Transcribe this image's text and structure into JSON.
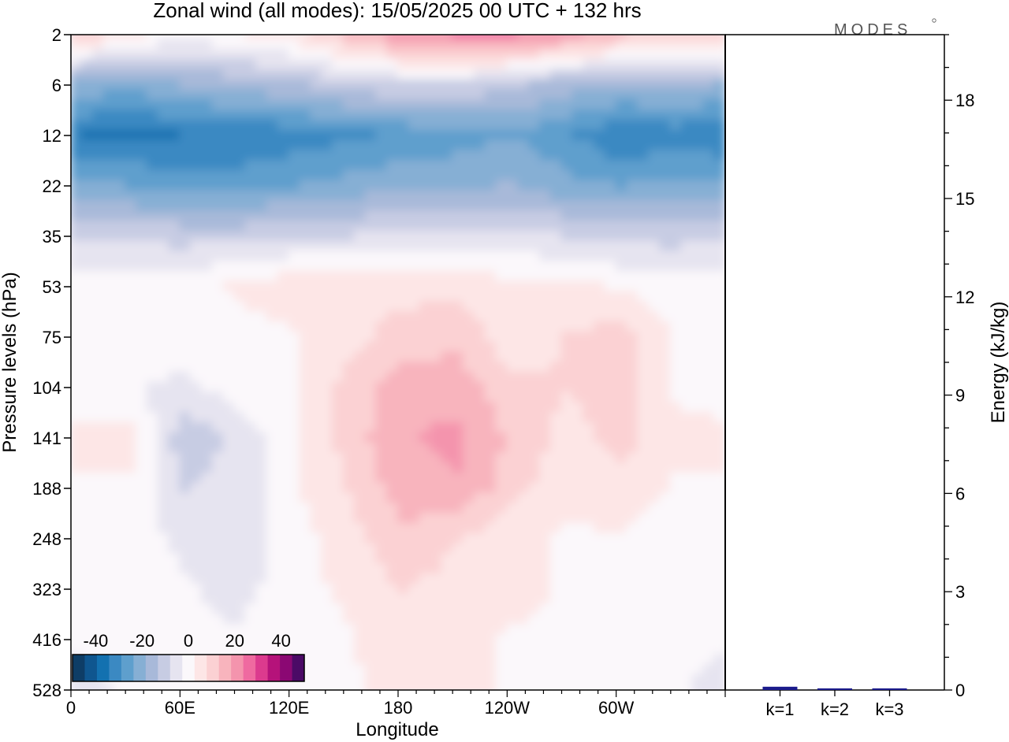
{
  "chart_data": [
    {
      "type": "heatmap",
      "title": "Zonal wind (all modes):  15/05/2025  00 UTC  + 132 hrs",
      "xlabel": "Longitude",
      "ylabel": "Pressure levels (hPa)",
      "x_ticks": [
        "0",
        "60E",
        "120E",
        "180",
        "120W",
        "60W"
      ],
      "x_tick_degrees": [
        0,
        60,
        120,
        180,
        240,
        300
      ],
      "x_range": [
        0,
        360
      ],
      "y_ticks": [
        "2",
        "6",
        "12",
        "22",
        "35",
        "53",
        "75",
        "104",
        "141",
        "188",
        "248",
        "323",
        "416",
        "528"
      ],
      "y_scale": "category (top to bottom)",
      "colorbar": {
        "tick_labels": [
          "-40",
          "-20",
          "0",
          "20",
          "40"
        ],
        "range": [
          -50,
          50
        ],
        "colors": [
          "#0e3d66",
          "#0f568f",
          "#1371b0",
          "#3b89c2",
          "#5e9fcd",
          "#86afd4",
          "#a8b9d9",
          "#c7cce3",
          "#e6e4f0",
          "#fbf8fb",
          "#fde6e6",
          "#fbd1d3",
          "#f8b4bd",
          "#f494ad",
          "#ef6aa0",
          "#dc3a8e",
          "#b5127a",
          "#8b0873",
          "#4b0a66"
        ]
      },
      "values_rows_top_to_bottom_every_30deg": [
        [
          12,
          4,
          0,
          2,
          6,
          14,
          20,
          24,
          24,
          20,
          14,
          8
        ],
        [
          -20,
          -22,
          -18,
          -16,
          -14,
          -10,
          -8,
          -8,
          -12,
          -16,
          -18,
          -16
        ],
        [
          -34,
          -36,
          -34,
          -34,
          -32,
          -30,
          -28,
          -26,
          -24,
          -28,
          -34,
          -32
        ],
        [
          -22,
          -24,
          -26,
          -26,
          -24,
          -22,
          -20,
          -20,
          -18,
          -22,
          -24,
          -22
        ],
        [
          -8,
          -10,
          -10,
          -10,
          -8,
          -8,
          -6,
          -6,
          -6,
          -8,
          -10,
          -10
        ],
        [
          0,
          2,
          0,
          4,
          6,
          6,
          6,
          6,
          4,
          4,
          2,
          0
        ],
        [
          0,
          2,
          0,
          0,
          2,
          6,
          10,
          12,
          4,
          8,
          10,
          2
        ],
        [
          0,
          -2,
          -4,
          0,
          2,
          10,
          16,
          16,
          10,
          8,
          10,
          2
        ],
        [
          4,
          4,
          -12,
          -6,
          2,
          10,
          18,
          20,
          12,
          6,
          10,
          4
        ],
        [
          2,
          2,
          -8,
          -6,
          2,
          8,
          16,
          18,
          10,
          4,
          6,
          2
        ],
        [
          0,
          0,
          -4,
          -6,
          0,
          6,
          12,
          8,
          4,
          2,
          2,
          0
        ],
        [
          -2,
          0,
          -2,
          -4,
          0,
          4,
          8,
          6,
          4,
          2,
          0,
          0
        ],
        [
          -2,
          0,
          -2,
          -2,
          0,
          2,
          6,
          4,
          2,
          2,
          0,
          -2
        ],
        [
          -4,
          -2,
          0,
          0,
          0,
          2,
          4,
          4,
          2,
          2,
          0,
          -2
        ]
      ]
    },
    {
      "type": "bar",
      "categories": [
        "k=1",
        "k=2",
        "k=3"
      ],
      "values": [
        0.1,
        0.05,
        0.05
      ],
      "ylabel": "Energy (kJ/kg)",
      "ylim": [
        0,
        20
      ],
      "y_ticks": [
        "0",
        "3",
        "6",
        "9",
        "12",
        "15",
        "18"
      ],
      "bar_color": "#1c1c8c"
    }
  ],
  "logo_text": "MODES"
}
